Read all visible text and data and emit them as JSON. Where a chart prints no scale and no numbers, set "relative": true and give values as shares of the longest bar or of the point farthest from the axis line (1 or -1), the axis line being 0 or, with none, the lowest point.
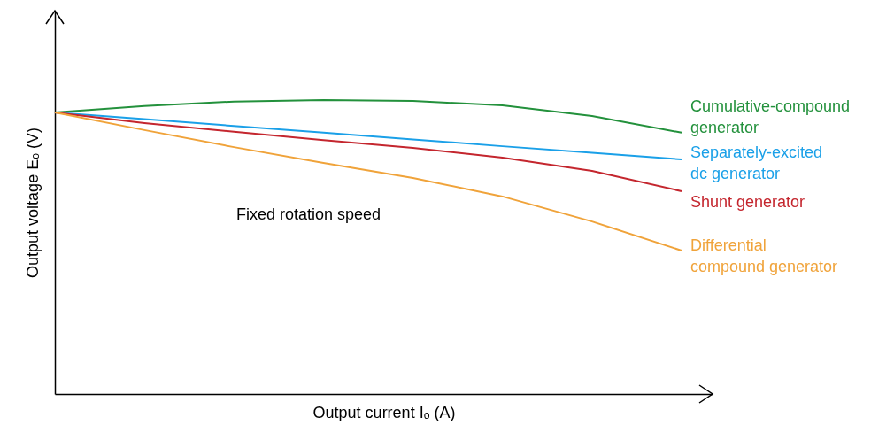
{
  "chart_data": {
    "type": "line",
    "relative": true,
    "xlabel": "Output current Iₒ (A)",
    "ylabel": "Output voltage Eₒ (V)",
    "categories": [
      null,
      null,
      null,
      null,
      null,
      null,
      null,
      null
    ],
    "annotations": [
      "Fixed rotation speed"
    ],
    "series": [
      {
        "name": "Cumulative-compound generator",
        "color": "#23913c",
        "values": [
          0.958,
          0.98,
          0.995,
          1.0,
          0.997,
          0.982,
          0.946,
          0.889
        ]
      },
      {
        "name": "Separately-excited dc generator",
        "color": "#1aa0e8",
        "values": [
          0.958,
          0.935,
          0.912,
          0.889,
          0.866,
          0.843,
          0.821,
          0.798
        ]
      },
      {
        "name": "Shunt generator",
        "color": "#c4262e",
        "values": [
          0.958,
          0.922,
          0.892,
          0.864,
          0.837,
          0.804,
          0.759,
          0.69
        ]
      },
      {
        "name": "Differential compound generator",
        "color": "#f0a33a",
        "values": [
          0.958,
          0.898,
          0.84,
          0.786,
          0.735,
          0.672,
          0.587,
          0.488
        ]
      }
    ]
  }
}
